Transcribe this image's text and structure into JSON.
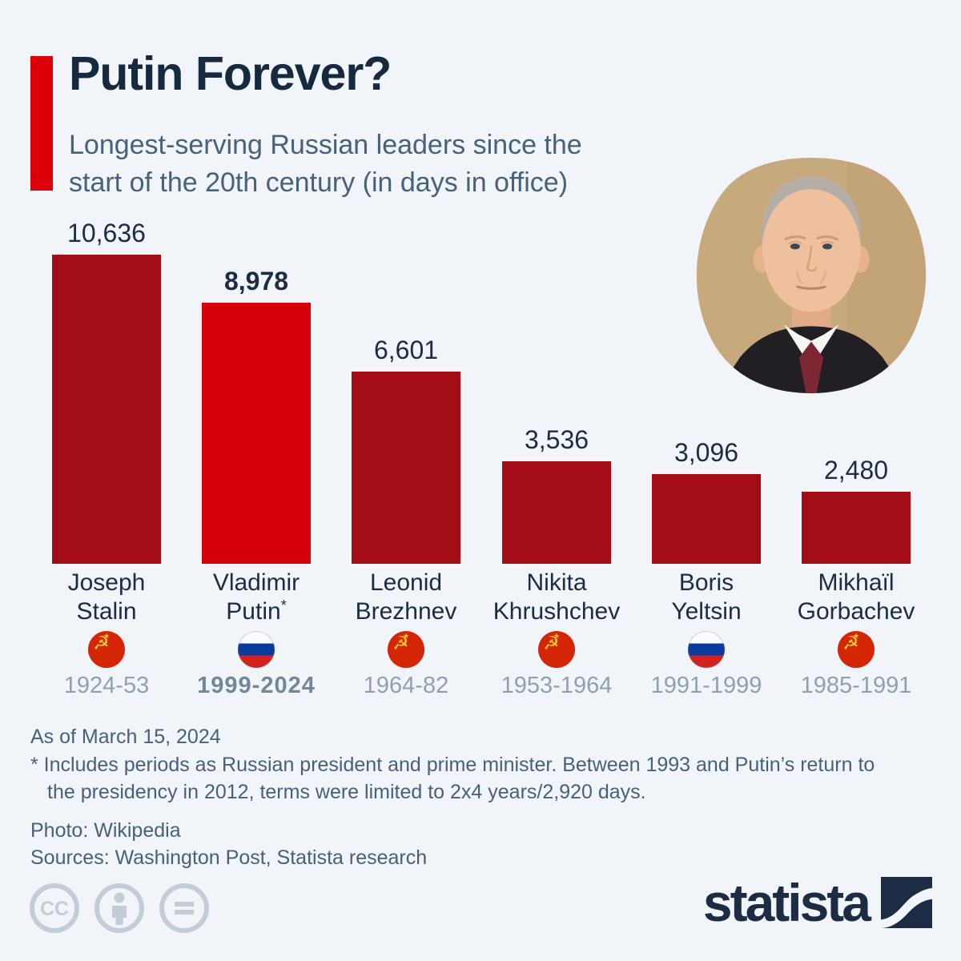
{
  "header": {
    "title": "Putin Forever?",
    "subtitle_line1": "Longest-serving Russian leaders since the",
    "subtitle_line2": "start of the 20th century (in days in office)"
  },
  "chart_data": {
    "type": "bar",
    "title": "Putin Forever?",
    "subtitle": "Longest-serving Russian leaders since the start of the 20th century (in days in office)",
    "unit": "days in office",
    "categories": [
      "Joseph Stalin",
      "Vladimir Putin*",
      "Leonid Brezhnev",
      "Nikita Khrushchev",
      "Boris Yeltsin",
      "Mikhaïl Gorbachev"
    ],
    "values": [
      10636,
      8978,
      6601,
      3536,
      3096,
      2480
    ],
    "value_labels": [
      "10,636",
      "8,978",
      "6,601",
      "3,536",
      "3,096",
      "2,480"
    ],
    "periods": [
      "1924-53",
      "1999-2024",
      "1964-82",
      "1953-1964",
      "1991-1999",
      "1985-1991"
    ],
    "flags": [
      "ussr",
      "russia",
      "ussr",
      "ussr",
      "russia",
      "ussr"
    ],
    "highlighted_category": "Vladimir Putin*",
    "ylim": [
      0,
      10636
    ],
    "grid": false,
    "legend": "none",
    "bar_color": "#a30d16",
    "highlight_color": "#d60008"
  },
  "leaders": [
    {
      "first": "Joseph",
      "last": "Stalin",
      "suffix": "",
      "value": 10636,
      "value_label": "10,636",
      "period": "1924-53",
      "flag": "ussr",
      "highlighted": false
    },
    {
      "first": "Vladimir",
      "last": "Putin",
      "suffix": "*",
      "value": 8978,
      "value_label": "8,978",
      "period": "1999-2024",
      "flag": "russia",
      "highlighted": true
    },
    {
      "first": "Leonid",
      "last": "Brezhnev",
      "suffix": "",
      "value": 6601,
      "value_label": "6,601",
      "period": "1964-82",
      "flag": "ussr",
      "highlighted": false
    },
    {
      "first": "Nikita",
      "last": "Khrushchev",
      "suffix": "",
      "value": 3536,
      "value_label": "3,536",
      "period": "1953-1964",
      "flag": "ussr",
      "highlighted": false
    },
    {
      "first": "Boris",
      "last": "Yeltsin",
      "suffix": "",
      "value": 3096,
      "value_label": "3,096",
      "period": "1991-1999",
      "flag": "russia",
      "highlighted": false
    },
    {
      "first": "Mikhaïl",
      "last": "Gorbachev",
      "suffix": "",
      "value": 2480,
      "value_label": "2,480",
      "period": "1985-1991",
      "flag": "ussr",
      "highlighted": false
    }
  ],
  "notes": {
    "as_of": "As of March 15, 2024",
    "footnote_line1": "* Includes periods as Russian president and prime minister. Between 1993 and Putin’s return to",
    "footnote_line2": "the presidency in 2012, terms were limited to 2x4 years/2,920 days.",
    "photo_credit": "Photo: Wikipedia",
    "sources": "Sources: Washington Post, Statista research"
  },
  "footer": {
    "brand": "statista",
    "license_icons": [
      "cc-icon",
      "attribution-icon",
      "equals-icon"
    ]
  },
  "colors": {
    "background": "#f1f4f8",
    "title": "#15293f",
    "subtitle": "#47617b",
    "bar": "#a30d16",
    "highlight": "#d60008",
    "accent": "#dc0009",
    "value": "#1b2c44",
    "period": "#8fa1b1",
    "period_highlight": "#73879a",
    "license": "#c2cdd8",
    "brand": "#1b2c44"
  }
}
